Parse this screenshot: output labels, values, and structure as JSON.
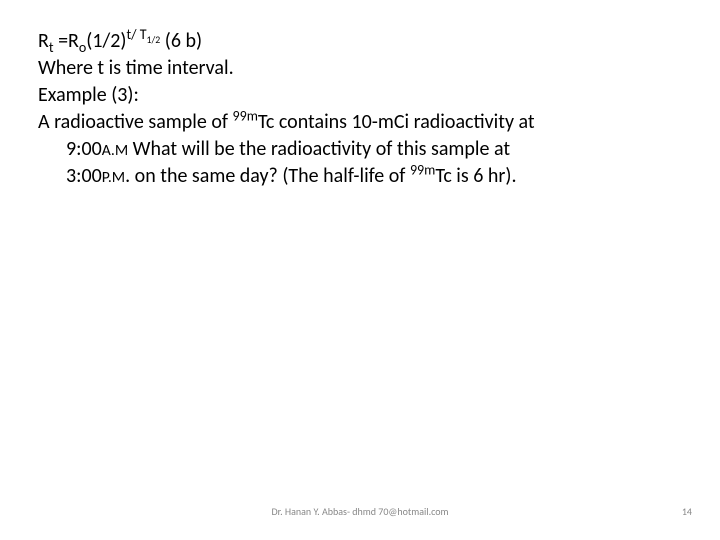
{
  "body": {
    "font_size_pt": 20,
    "color": "#000000",
    "line1": {
      "prefix": "R",
      "sub1": "t",
      "mid1": " =R",
      "sub2": "o",
      "mid2": "(1/2)",
      "sup1": "t/ T",
      "sup1_sub": "1/2",
      "suffix": "   (6 b)"
    },
    "line2": "Where t is time interval.",
    "line3": "Example (3):",
    "line4": {
      "p1": "A radioactive sample of ",
      "sup_a": "99m",
      "p2": "Tc contains 10-mCi radioactivity at"
    },
    "line5": {
      "p1": "9:00",
      "small1": "A.M",
      "p2": " What will be the radioactivity of this sample at"
    },
    "line6": {
      "p1": "3:00",
      "small1": "P.M",
      "p2": ". on the same day? (The half-life of ",
      "sup_a": "99m",
      "p3": "Tc  is 6 hr)."
    }
  },
  "footer": {
    "author": "Dr. Hanan Y. Abbas- dhmd 70@hotmail.com",
    "page_number": "14",
    "font_size_pt": 10,
    "color": "#888888"
  }
}
